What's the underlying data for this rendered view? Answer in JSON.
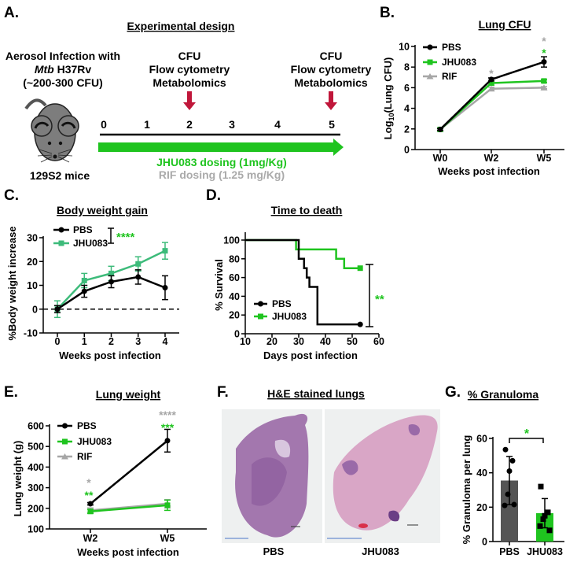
{
  "panels": {
    "A": "A.",
    "B": "B.",
    "C": "C.",
    "D": "D.",
    "E": "E.",
    "F": "F.",
    "G": "G."
  },
  "design": {
    "title": "Experimental design",
    "infection_line1": "Aerosol Infection with",
    "infection_mtb": "Mtb",
    "infection_strain": " H37Rv",
    "infection_dose": "(~200-300 CFU)",
    "mouse_label": "129S2 mice",
    "timepoint_lines": [
      "CFU",
      "Flow cytometry",
      "Metabolomics"
    ],
    "weeks": [
      "0",
      "1",
      "2",
      "3",
      "4",
      "5"
    ],
    "jhu_dosing": "JHU083 dosing (1mg/Kg)",
    "rif_dosing": "RIF dosing (1.25 mg/Kg)",
    "colors": {
      "green": "#1fc41f",
      "gray": "#aaaaaa",
      "red_arrow": "#c0163a"
    }
  },
  "histology": {
    "title": "H&E stained lungs",
    "labels": [
      "PBS",
      "JHU083"
    ]
  },
  "chart_data": [
    {
      "id": "lung-cfu",
      "type": "line",
      "title": "Lung CFU",
      "xlabel": "Weeks post infection",
      "ylabel_parts": [
        "Log",
        "10",
        "(Lung CFU)"
      ],
      "categories": [
        "W0",
        "W2",
        "W5"
      ],
      "ylim": [
        0,
        10
      ],
      "yticks": [
        0,
        2,
        4,
        6,
        8,
        10
      ],
      "series": [
        {
          "name": "PBS",
          "color": "#000000",
          "marker": "circle",
          "values": [
            1.95,
            6.8,
            8.5
          ],
          "errors": [
            0.1,
            0.15,
            0.5
          ]
        },
        {
          "name": "JHU083",
          "color": "#1fc41f",
          "marker": "square",
          "values": [
            1.95,
            6.45,
            6.65
          ],
          "errors": [
            0.1,
            0.2,
            0.15
          ]
        },
        {
          "name": "RIF",
          "color": "#a6a6a6",
          "marker": "triangle",
          "values": [
            1.95,
            5.9,
            6.0
          ],
          "errors": [
            0.1,
            0.15,
            0.1
          ]
        }
      ],
      "annotations": [
        {
          "text": "*",
          "color": "#a6a6a6",
          "at": "W2"
        },
        {
          "text": "*",
          "color": "#a6a6a6",
          "at": "W5"
        },
        {
          "text": "*",
          "color": "#1fc41f",
          "at": "W5"
        }
      ]
    },
    {
      "id": "body-weight",
      "type": "line",
      "title": "Body weight gain",
      "xlabel": "Weeks post infection",
      "ylabel": "%Body weight increase",
      "x": [
        0,
        1,
        2,
        3,
        4
      ],
      "xlim": [
        0,
        4
      ],
      "xticks": [
        0,
        1,
        2,
        3,
        4
      ],
      "ylim": [
        -10,
        30
      ],
      "yticks": [
        -10,
        0,
        10,
        20,
        30
      ],
      "reference_line": 0,
      "series": [
        {
          "name": "PBS",
          "color": "#000000",
          "marker": "circle",
          "values": [
            0,
            7.5,
            11.5,
            13.5,
            9
          ],
          "errors": [
            1.5,
            2.5,
            2.5,
            3,
            5
          ]
        },
        {
          "name": "JHU083",
          "color": "#3dbb7a",
          "marker": "square",
          "values": [
            0,
            12,
            15,
            19,
            24.5
          ],
          "errors": [
            3.5,
            3,
            3,
            3,
            3.5
          ]
        }
      ],
      "annotations": [
        {
          "text": "****",
          "color": "#1fc41f"
        }
      ]
    },
    {
      "id": "survival",
      "type": "line",
      "title": "Time to death",
      "xlabel": "Days post infection",
      "ylabel": "% Survival",
      "xlim": [
        10,
        60
      ],
      "xticks": [
        10,
        20,
        30,
        40,
        50,
        60
      ],
      "ylim": [
        0,
        100
      ],
      "yticks": [
        0,
        20,
        40,
        60,
        80,
        100
      ],
      "series": [
        {
          "name": "PBS",
          "color": "#000000",
          "marker": "circle",
          "x": [
            10,
            30,
            32,
            33,
            34,
            37,
            53
          ],
          "values": [
            100,
            80,
            70,
            60,
            50,
            10,
            10
          ]
        },
        {
          "name": "JHU083",
          "color": "#1fc41f",
          "marker": "square",
          "x": [
            10,
            29,
            44,
            47,
            53
          ],
          "values": [
            100,
            90,
            80,
            70,
            70
          ]
        }
      ],
      "annotations": [
        {
          "text": "**",
          "color": "#1fc41f"
        }
      ]
    },
    {
      "id": "lung-weight",
      "type": "line",
      "title": "Lung weight",
      "xlabel": "Weeks post infection",
      "ylabel": "Lung weight (g)",
      "categories": [
        "W2",
        "W5"
      ],
      "ylim": [
        100,
        600
      ],
      "yticks": [
        100,
        200,
        300,
        400,
        500,
        600
      ],
      "series": [
        {
          "name": "PBS",
          "color": "#000000",
          "marker": "circle",
          "values": [
            222,
            528
          ],
          "errors": [
            6,
            55
          ]
        },
        {
          "name": "JHU083",
          "color": "#1fc41f",
          "marker": "square",
          "values": [
            185,
            215
          ],
          "errors": [
            10,
            25
          ]
        },
        {
          "name": "RIF",
          "color": "#a6a6a6",
          "marker": "triangle",
          "values": [
            190,
            222
          ],
          "errors": [
            12,
            20
          ]
        }
      ],
      "annotations": [
        {
          "text": "*",
          "color": "#a6a6a6",
          "at": "W2"
        },
        {
          "text": "**",
          "color": "#1fc41f",
          "at": "W2"
        },
        {
          "text": "****",
          "color": "#a6a6a6",
          "at": "W5"
        },
        {
          "text": "***",
          "color": "#1fc41f",
          "at": "W5"
        }
      ]
    },
    {
      "id": "granuloma",
      "type": "bar",
      "title": "% Granuloma",
      "xlabel": "",
      "ylabel": "% Granuloma per lung",
      "categories": [
        "PBS",
        "JHU083"
      ],
      "values": [
        35.5,
        16.5
      ],
      "errors": [
        14,
        8.5
      ],
      "colors": [
        "#555555",
        "#1fc41f"
      ],
      "points": [
        [
          53.5,
          47,
          41,
          27.5,
          21,
          21.5
        ],
        [
          32,
          17,
          15,
          13,
          9,
          6.5
        ]
      ],
      "ylim": [
        0,
        60
      ],
      "yticks": [
        0,
        20,
        40,
        60
      ],
      "annotations": [
        {
          "text": "*",
          "color": "#1fc41f"
        }
      ]
    }
  ]
}
